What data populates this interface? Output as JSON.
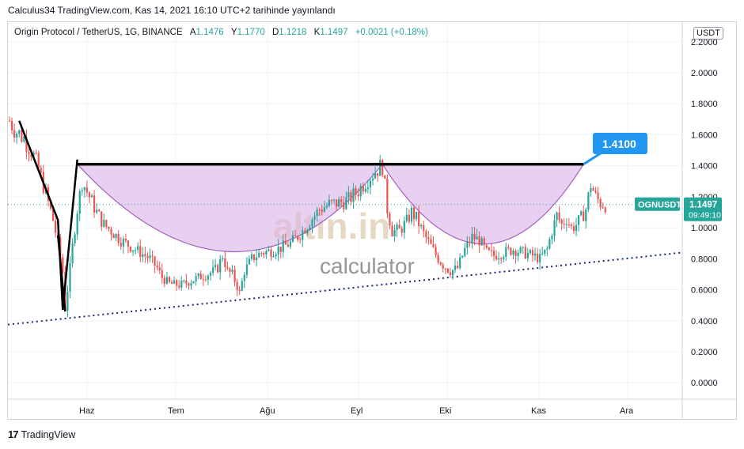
{
  "header": {
    "publish_line": "Calculus34 TradingView.com, Kas 14, 2021 16:10 UTC+2 tarihinde yayınlandı"
  },
  "legend": {
    "symbol": "Origin Protocol / TetherUS, 1G, BINANCE",
    "open_label": "A",
    "open": "1.1476",
    "high_label": "Y",
    "high": "1.1770",
    "low_label": "D",
    "low": "1.1218",
    "close_label": "K",
    "close": "1.1497",
    "change": "+0.0021 (+0.18%)"
  },
  "currency_badge": "USDT",
  "footer": {
    "brand": "TradingView",
    "logo_text": "17"
  },
  "watermark": {
    "brand": "altin.in",
    "sub": "calculator"
  },
  "colors": {
    "up": "#26a69a",
    "down": "#ef5350",
    "cup_fill": "#dcb8e8",
    "cup_stroke": "#a45fc4",
    "trend": "#1a237e",
    "resistance": "#000000",
    "callout": "#2196f3"
  },
  "chart_data": {
    "type": "candlestick",
    "title": "Origin Protocol / TetherUS, 1G, BINANCE",
    "x_tick_labels": [
      "Haz",
      "Tem",
      "Ağu",
      "Eyl",
      "Eki",
      "Kas",
      "Ara"
    ],
    "y_tick_labels": [
      "2.2000",
      "2.0000",
      "1.8000",
      "1.6000",
      "1.4000",
      "1.2000",
      "1.0000",
      "0.8000",
      "0.6000",
      "0.4000",
      "0.2000",
      "0.0000"
    ],
    "ylim": [
      -0.08,
      2.22
    ],
    "grid": true,
    "last_price": {
      "label": "OGNUSDT",
      "value": "1.1497",
      "countdown": "09:49:10"
    },
    "resistance_level": {
      "label": "1.4100",
      "value": 1.41
    },
    "price_path": [
      [
        0,
        1.69
      ],
      [
        3,
        1.62
      ],
      [
        6,
        1.58
      ],
      [
        9,
        1.5
      ],
      [
        12,
        1.38
      ],
      [
        15,
        1.22
      ],
      [
        18,
        1.05
      ],
      [
        20,
        0.9
      ],
      [
        22,
        0.72
      ],
      [
        23,
        0.48
      ],
      [
        24,
        0.6
      ],
      [
        26,
        0.88
      ],
      [
        28,
        1.12
      ],
      [
        30,
        1.3
      ],
      [
        33,
        1.2
      ],
      [
        36,
        1.1
      ],
      [
        39,
        1.02
      ],
      [
        42,
        0.98
      ],
      [
        46,
        0.92
      ],
      [
        50,
        0.88
      ],
      [
        54,
        0.84
      ],
      [
        58,
        0.8
      ],
      [
        61,
        0.74
      ],
      [
        63,
        0.68
      ],
      [
        66,
        0.64
      ],
      [
        70,
        0.63
      ],
      [
        74,
        0.65
      ],
      [
        78,
        0.68
      ],
      [
        82,
        0.7
      ],
      [
        86,
        0.74
      ],
      [
        88,
        0.82
      ],
      [
        90,
        0.72
      ],
      [
        92,
        0.7
      ],
      [
        94,
        0.62
      ],
      [
        95,
        0.58
      ],
      [
        97,
        0.72
      ],
      [
        100,
        0.8
      ],
      [
        104,
        0.84
      ],
      [
        108,
        0.85
      ],
      [
        112,
        0.87
      ],
      [
        116,
        0.9
      ],
      [
        120,
        0.96
      ],
      [
        124,
        1.04
      ],
      [
        128,
        1.12
      ],
      [
        132,
        1.15
      ],
      [
        136,
        1.16
      ],
      [
        140,
        1.18
      ],
      [
        144,
        1.24
      ],
      [
        148,
        1.32
      ],
      [
        152,
        1.38
      ],
      [
        154,
        1.4
      ],
      [
        156,
        1.12
      ],
      [
        158,
        0.98
      ],
      [
        161,
        0.98
      ],
      [
        164,
        1.04
      ],
      [
        166,
        1.1
      ],
      [
        168,
        1.06
      ],
      [
        171,
        0.96
      ],
      [
        174,
        0.88
      ],
      [
        177,
        0.8
      ],
      [
        179,
        0.76
      ],
      [
        182,
        0.72
      ],
      [
        185,
        0.74
      ],
      [
        188,
        0.86
      ],
      [
        191,
        0.94
      ],
      [
        194,
        0.92
      ],
      [
        197,
        0.84
      ],
      [
        200,
        0.82
      ],
      [
        204,
        0.84
      ],
      [
        208,
        0.86
      ],
      [
        212,
        0.84
      ],
      [
        216,
        0.82
      ],
      [
        219,
        0.8
      ],
      [
        222,
        0.86
      ],
      [
        224,
        0.98
      ],
      [
        226,
        1.08
      ],
      [
        228,
        1.02
      ],
      [
        230,
        1.06
      ],
      [
        232,
        1.0
      ],
      [
        234,
        1.02
      ],
      [
        236,
        1.06
      ],
      [
        238,
        1.12
      ],
      [
        240,
        1.28
      ],
      [
        242,
        1.2
      ],
      [
        244,
        1.16
      ],
      [
        246,
        1.15
      ]
    ]
  }
}
